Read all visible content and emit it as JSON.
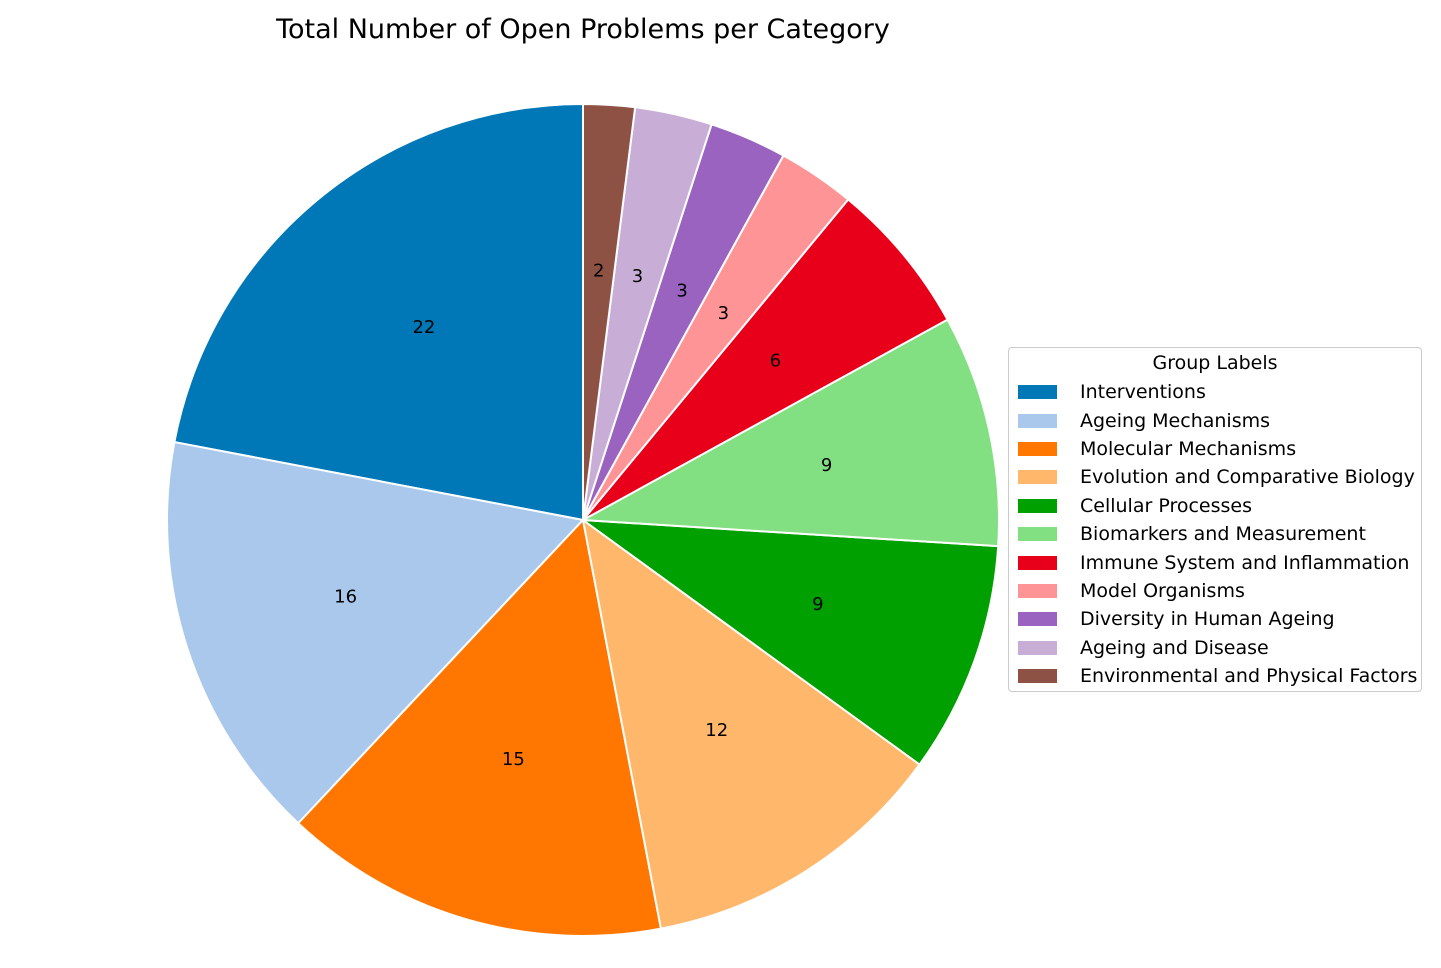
{
  "chart_data": {
    "type": "pie",
    "title": "Total Number of Open Problems per Category",
    "legend_title": "Group Labels",
    "legend_position": "right",
    "start_angle_deg": 90,
    "direction": "counterclockwise",
    "slices": [
      {
        "label": "Interventions",
        "value": 22,
        "color": "#0077b6"
      },
      {
        "label": "Ageing Mechanisms",
        "value": 16,
        "color": "#a9c8eb"
      },
      {
        "label": "Molecular Mechanisms",
        "value": 15,
        "color": "#ff7700"
      },
      {
        "label": "Evolution and Comparative Biology",
        "value": 12,
        "color": "#ffb86b"
      },
      {
        "label": "Cellular Processes",
        "value": 9,
        "color": "#00a000"
      },
      {
        "label": "Biomarkers and Measurement",
        "value": 9,
        "color": "#82df82"
      },
      {
        "label": "Immune System and Inflammation",
        "value": 6,
        "color": "#e8001b"
      },
      {
        "label": "Model Organisms",
        "value": 3,
        "color": "#ff9496"
      },
      {
        "label": "Diversity in Human Ageing",
        "value": 3,
        "color": "#9a63c0"
      },
      {
        "label": "Ageing and Disease",
        "value": 3,
        "color": "#c8aed7"
      },
      {
        "label": "Environmental and Physical Factors",
        "value": 2,
        "color": "#8e5245"
      }
    ]
  }
}
